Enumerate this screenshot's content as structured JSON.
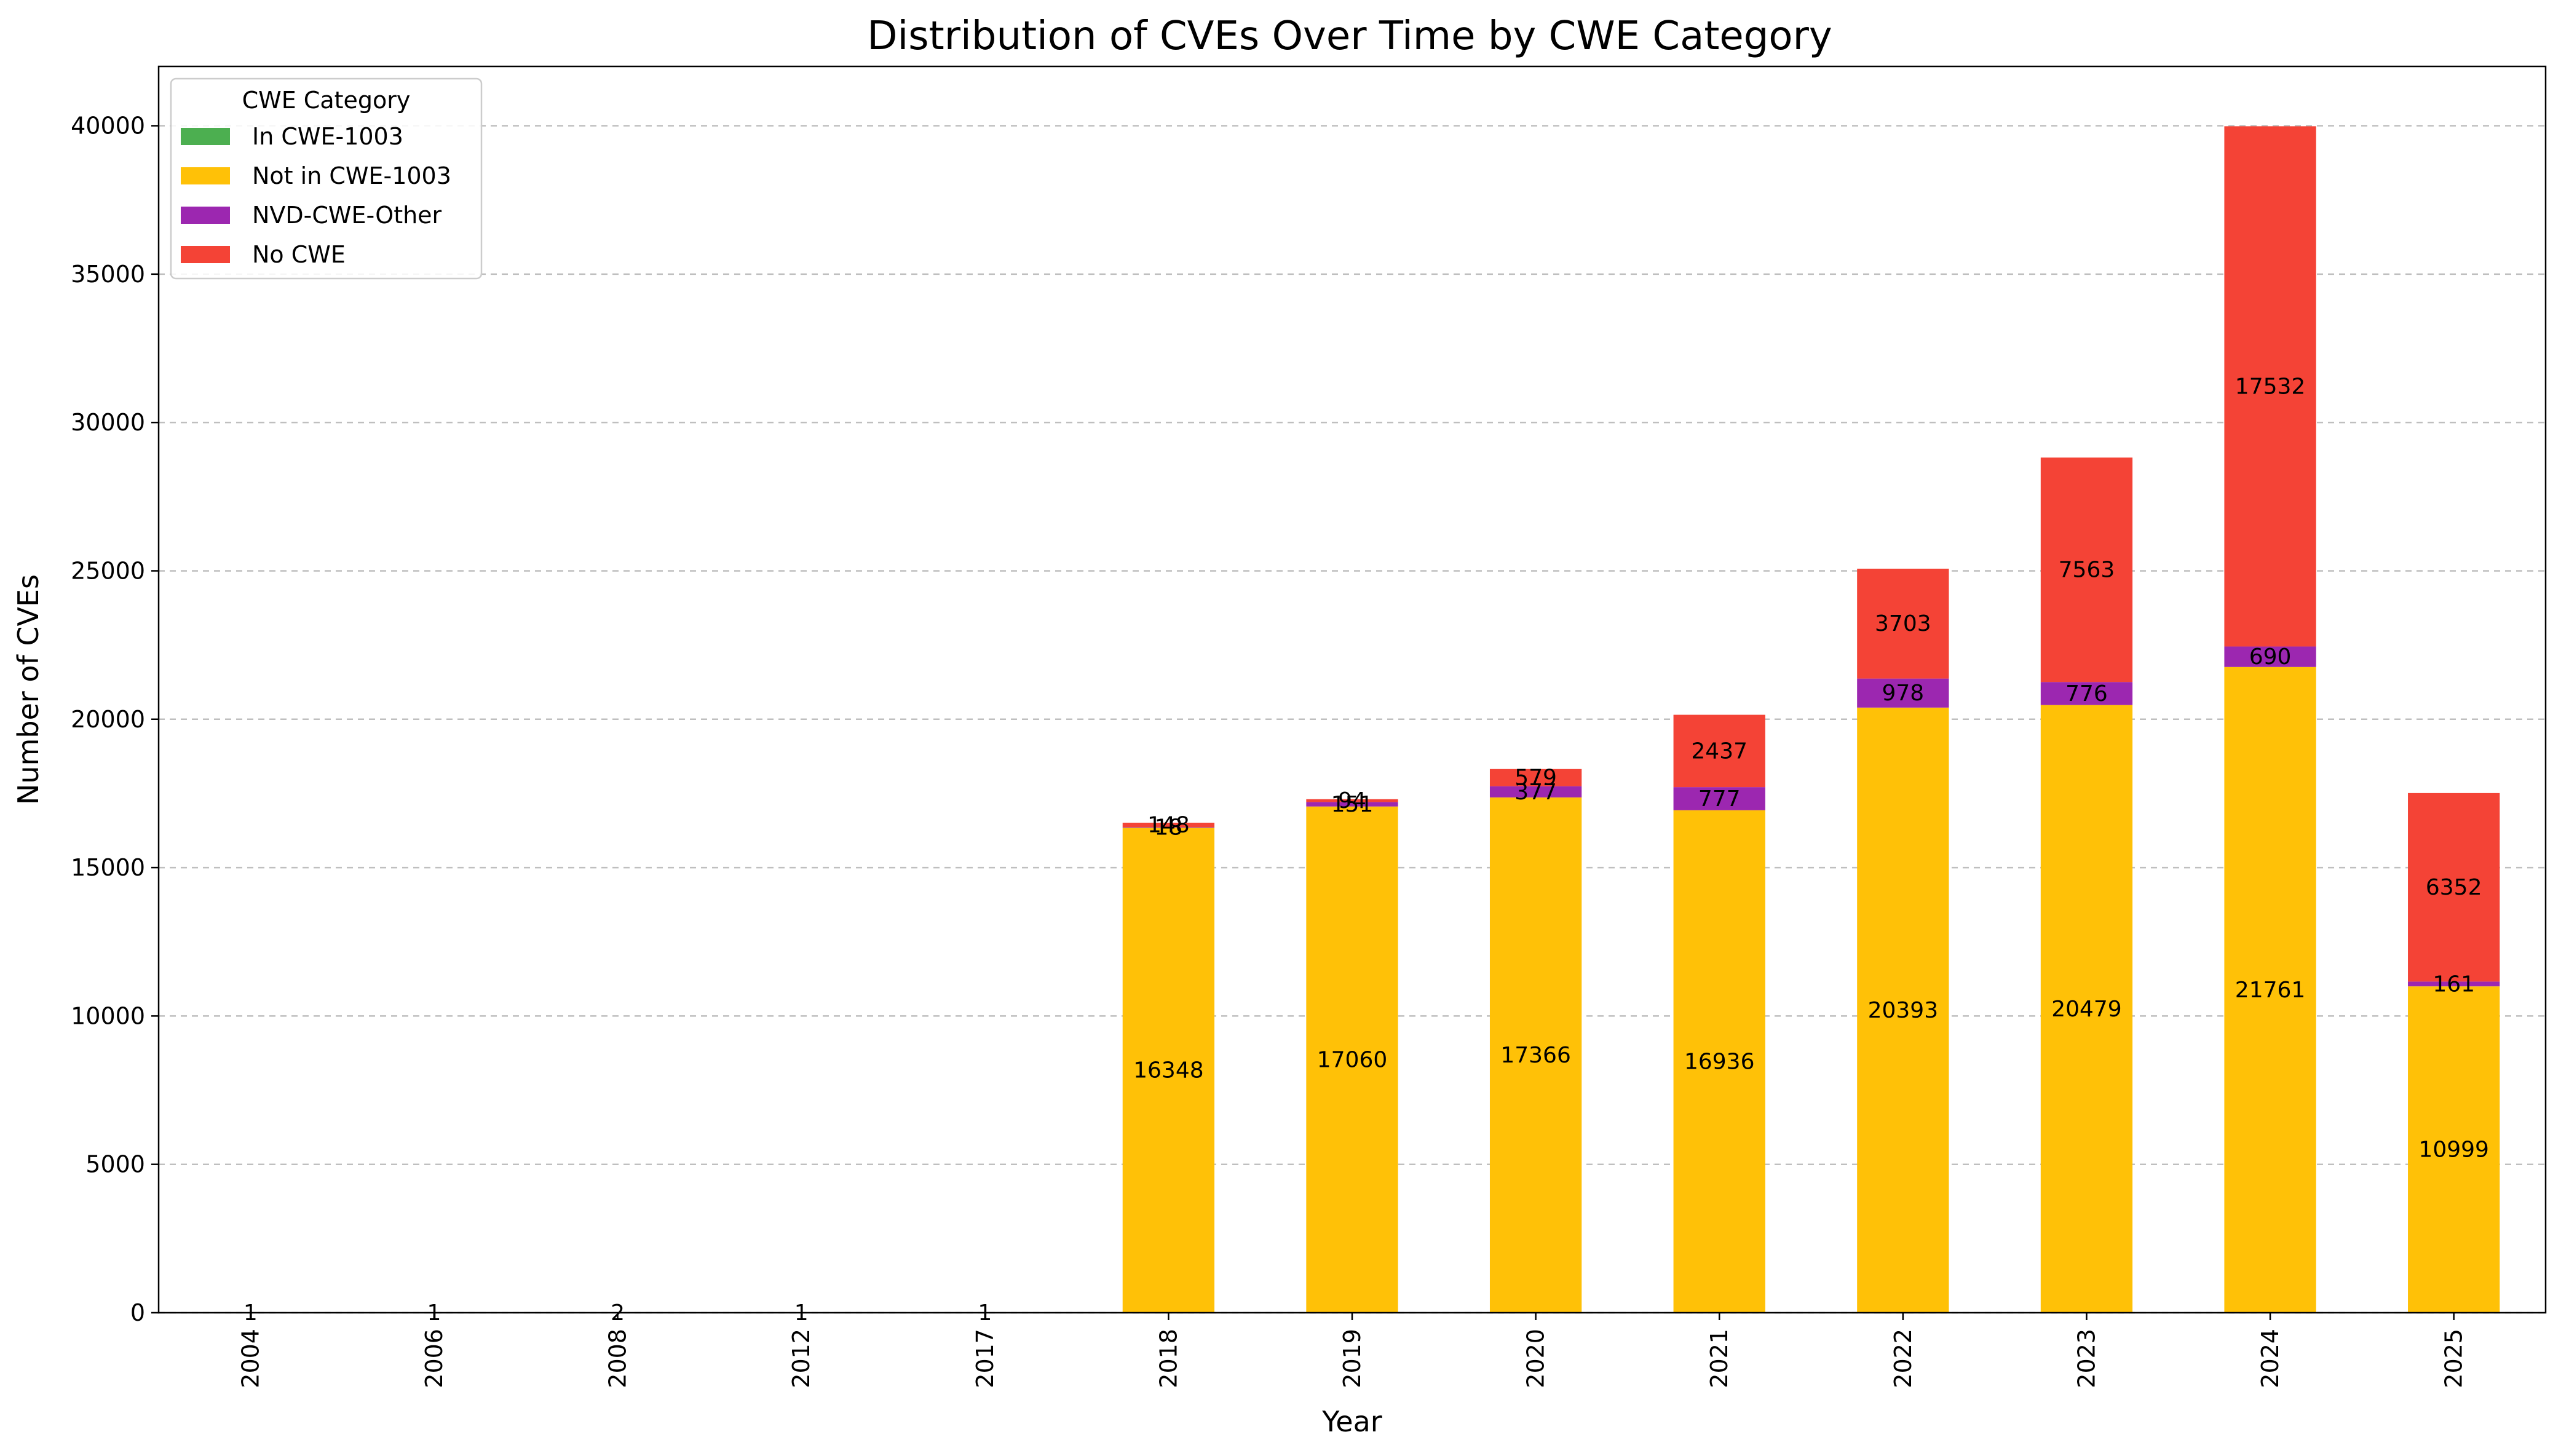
{
  "chart_data": {
    "type": "bar",
    "stacked": true,
    "title": "Distribution of CVEs Over Time by CWE Category",
    "xlabel": "Year",
    "ylabel": "Number of CVEs",
    "ylim": [
      0,
      42000
    ],
    "yticks": [
      0,
      5000,
      10000,
      15000,
      20000,
      25000,
      30000,
      35000,
      40000
    ],
    "grid": "y-dashed",
    "legend_title": "CWE Category",
    "legend_position": "top-left",
    "categories": [
      "2004",
      "2006",
      "2008",
      "2012",
      "2017",
      "2018",
      "2019",
      "2020",
      "2021",
      "2022",
      "2023",
      "2024",
      "2025"
    ],
    "series": [
      {
        "name": "In CWE-1003",
        "color": "#4caf50",
        "values": [
          0,
          0,
          0,
          0,
          0,
          0,
          0,
          0,
          0,
          0,
          0,
          0,
          0
        ]
      },
      {
        "name": "Not in CWE-1003",
        "color": "#ffc107",
        "values": [
          1,
          1,
          2,
          1,
          1,
          16348,
          17060,
          17366,
          16936,
          20393,
          20479,
          21761,
          10999
        ]
      },
      {
        "name": "NVD-CWE-Other",
        "color": "#9c27b0",
        "values": [
          0,
          0,
          0,
          0,
          0,
          18,
          151,
          377,
          777,
          978,
          776,
          690,
          161
        ]
      },
      {
        "name": "No CWE",
        "color": "#f44336",
        "values": [
          0,
          0,
          0,
          0,
          0,
          148,
          94,
          579,
          2437,
          3703,
          7563,
          17532,
          6352
        ]
      }
    ]
  }
}
